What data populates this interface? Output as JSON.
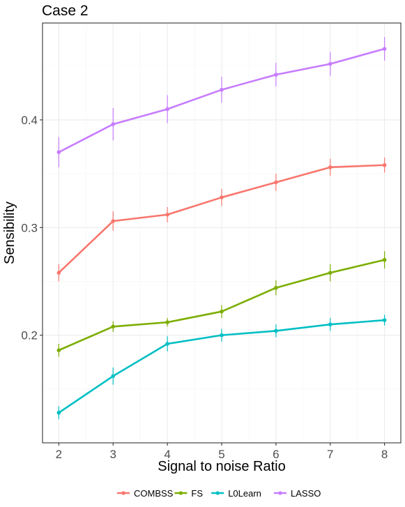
{
  "chart_data": {
    "type": "line",
    "title": "Case 2",
    "xlabel": "Signal to noise Ratio",
    "ylabel": "Sensibility",
    "x": [
      2,
      3,
      4,
      5,
      6,
      7,
      8
    ],
    "xlim": [
      1.7,
      8.3
    ],
    "ylim": [
      0.1,
      0.49
    ],
    "xticks": [
      "2",
      "3",
      "4",
      "5",
      "6",
      "7",
      "8"
    ],
    "yticks": [
      "0.2",
      "0.3",
      "0.4"
    ],
    "grid": true,
    "legend_position": "bottom",
    "series": [
      {
        "name": "COMBSS",
        "color": "#F8766D",
        "values": [
          0.258,
          0.306,
          0.312,
          0.328,
          0.342,
          0.356,
          0.358
        ],
        "error": [
          0.008,
          0.009,
          0.007,
          0.008,
          0.008,
          0.008,
          0.007
        ]
      },
      {
        "name": "FS",
        "color": "#7CAE00",
        "values": [
          0.186,
          0.208,
          0.212,
          0.222,
          0.244,
          0.258,
          0.27
        ],
        "error": [
          0.006,
          0.005,
          0.004,
          0.006,
          0.007,
          0.008,
          0.008
        ]
      },
      {
        "name": "L0Learn",
        "color": "#00BFC4",
        "values": [
          0.128,
          0.162,
          0.192,
          0.2,
          0.204,
          0.21,
          0.214
        ],
        "error": [
          0.006,
          0.008,
          0.007,
          0.006,
          0.006,
          0.006,
          0.005
        ]
      },
      {
        "name": "LASSO",
        "color": "#C77CFF",
        "values": [
          0.37,
          0.396,
          0.41,
          0.428,
          0.442,
          0.452,
          0.466
        ],
        "error": [
          0.014,
          0.015,
          0.013,
          0.012,
          0.011,
          0.011,
          0.011
        ]
      }
    ]
  }
}
